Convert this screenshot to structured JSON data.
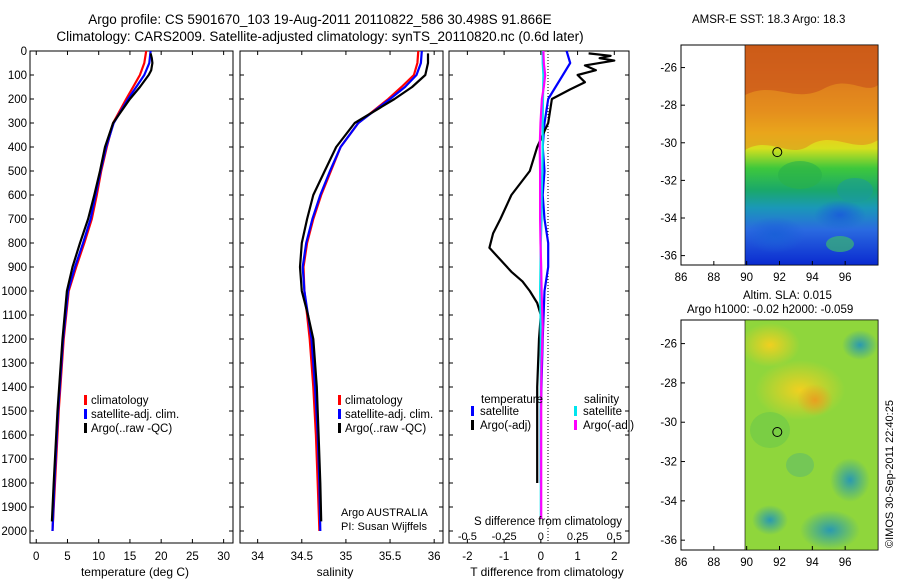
{
  "header": {
    "line1": "Argo profile: CS 5901670_103 19-Aug-2011 20110822_586 30.498S 91.866E",
    "line2": "Climatology: CARS2009. Satellite-adjusted climatology: synTS_20110820.nc (0.6d later)"
  },
  "colors": {
    "climatology": "#ff0000",
    "satellite": "#0000ff",
    "argo": "#000000",
    "salinity_satellite": "#00e5ee",
    "salinity_argo": "#ff00ff"
  },
  "depth_axis": {
    "ylim": [
      0,
      2050
    ],
    "ticks": [
      0,
      100,
      200,
      300,
      400,
      500,
      600,
      700,
      800,
      900,
      1000,
      1100,
      1200,
      1300,
      1400,
      1500,
      1600,
      1700,
      1800,
      1900,
      2000
    ]
  },
  "chart_data": [
    {
      "id": "temperature",
      "type": "line",
      "xlabel": "temperature (deg C)",
      "xlim": [
        -1,
        31.5
      ],
      "xticks": [
        0,
        5,
        10,
        15,
        20,
        25,
        30
      ],
      "legend": [
        "climatology",
        "satellite-adj. clim.",
        "Argo(..raw -QC)"
      ],
      "series": [
        {
          "name": "climatology",
          "color": "#ff0000",
          "depth": [
            0,
            50,
            100,
            150,
            200,
            300,
            400,
            500,
            600,
            700,
            800,
            900,
            1000,
            1200,
            1500,
            1800,
            2000
          ],
          "values": [
            17.6,
            17.3,
            16.6,
            15.5,
            14.4,
            12.3,
            11.3,
            10.4,
            9.7,
            8.9,
            7.7,
            6.4,
            5.2,
            4.4,
            3.6,
            3.0,
            2.6
          ]
        },
        {
          "name": "satellite-adj. clim.",
          "color": "#0000ff",
          "depth": [
            0,
            50,
            100,
            150,
            200,
            300,
            400,
            500,
            600,
            700,
            800,
            900,
            1000,
            1200,
            1500,
            1800,
            2000
          ],
          "values": [
            18.3,
            18.1,
            17.3,
            16.0,
            14.7,
            12.4,
            11.2,
            10.3,
            9.5,
            8.7,
            7.5,
            6.2,
            5.1,
            4.3,
            3.5,
            2.9,
            2.6
          ]
        },
        {
          "name": "Argo(..raw -QC)",
          "color": "#000000",
          "depth": [
            10,
            30,
            50,
            80,
            100,
            150,
            200,
            300,
            400,
            500,
            600,
            700,
            800,
            900,
            1000,
            1200,
            1500,
            1800,
            1960
          ],
          "values": [
            18.3,
            18.5,
            18.6,
            18.4,
            18.0,
            16.6,
            15.0,
            12.3,
            11.0,
            10.2,
            9.3,
            8.3,
            7.0,
            5.8,
            4.9,
            4.2,
            3.4,
            2.8,
            2.5
          ]
        }
      ]
    },
    {
      "id": "salinity",
      "type": "line",
      "xlabel": "salinity",
      "xlim": [
        33.8,
        36.1
      ],
      "xticks": [
        34,
        34.5,
        35,
        35.5,
        36
      ],
      "legend": [
        "climatology",
        "satellite-adj. clim.",
        "Argo(..raw -QC)"
      ],
      "series": [
        {
          "name": "climatology",
          "color": "#ff0000",
          "depth": [
            0,
            50,
            100,
            150,
            200,
            300,
            400,
            500,
            600,
            700,
            800,
            900,
            1000,
            1100,
            1200,
            1400,
            1600,
            1800,
            2000
          ],
          "values": [
            35.82,
            35.81,
            35.77,
            35.63,
            35.48,
            35.14,
            34.94,
            34.83,
            34.72,
            34.63,
            34.56,
            34.52,
            34.53,
            34.56,
            34.59,
            34.63,
            34.66,
            34.68,
            34.7
          ]
        },
        {
          "name": "satellite-adj. clim.",
          "color": "#0000ff",
          "depth": [
            0,
            50,
            100,
            150,
            200,
            300,
            400,
            500,
            600,
            700,
            800,
            900,
            1000,
            1100,
            1200,
            1400,
            1600,
            1800,
            2000
          ],
          "values": [
            35.86,
            35.85,
            35.8,
            35.67,
            35.5,
            35.14,
            34.94,
            34.82,
            34.71,
            34.62,
            34.55,
            34.51,
            34.53,
            34.57,
            34.61,
            34.65,
            34.68,
            34.7,
            34.71
          ]
        },
        {
          "name": "Argo(..raw -QC)",
          "color": "#000000",
          "depth": [
            10,
            50,
            100,
            150,
            200,
            300,
            400,
            500,
            600,
            700,
            800,
            900,
            1000,
            1100,
            1200,
            1400,
            1600,
            1800,
            1960
          ],
          "values": [
            35.93,
            35.93,
            35.9,
            35.75,
            35.55,
            35.1,
            34.89,
            34.76,
            34.63,
            34.56,
            34.5,
            34.48,
            34.5,
            34.57,
            34.63,
            34.67,
            34.69,
            34.71,
            34.72
          ]
        }
      ],
      "annotations": [
        "Argo AUSTRALIA",
        "PI: Susan Wijffels"
      ]
    },
    {
      "id": "difference",
      "type": "line",
      "xlabel_bottom": "T difference from climatology",
      "xlabel_top": "S difference from climatology",
      "xlim": [
        -2.5,
        2.4
      ],
      "xticks": [
        -2,
        -1,
        0,
        1,
        2
      ],
      "xticks_labels": [
        "-2",
        "-1",
        "0",
        "1",
        "2"
      ],
      "top_ticks_labels": [
        "-0.5",
        "-0.25",
        "0",
        "0.25",
        "0.5"
      ],
      "top_ticks_positions": [
        -2,
        -1,
        0,
        1,
        2
      ],
      "legend_temperature": {
        "heading": "temperature",
        "items": [
          "satellite",
          "Argo(-adj)"
        ]
      },
      "legend_salinity": {
        "heading": "salinity",
        "items": [
          "satellite",
          "Argo(-adj)"
        ]
      },
      "series": [
        {
          "name": "T satellite",
          "color": "#0000ff",
          "depth": [
            0,
            50,
            100,
            200,
            300,
            400,
            500,
            600,
            700,
            800,
            900,
            1000,
            1200,
            1500,
            1800
          ],
          "values": [
            0.7,
            0.8,
            0.6,
            0.2,
            0.1,
            0.05,
            0.1,
            0.05,
            0.1,
            0.2,
            0.2,
            0.1,
            0.05,
            0.0,
            0.0
          ]
        },
        {
          "name": "T Argo(-adj)",
          "color": "#000000",
          "depth": [
            10,
            20,
            30,
            40,
            60,
            80,
            100,
            130,
            160,
            200,
            300,
            400,
            500,
            600,
            700,
            760,
            820,
            870,
            920,
            960,
            1000,
            1050,
            1100,
            1200,
            1400,
            1600,
            1800
          ],
          "values": [
            1.3,
            1.9,
            1.6,
            2.0,
            1.2,
            1.5,
            1.0,
            1.2,
            0.8,
            0.3,
            0.2,
            -0.1,
            -0.3,
            -0.8,
            -1.1,
            -1.3,
            -1.4,
            -1.1,
            -0.8,
            -0.5,
            -0.3,
            -0.1,
            0.0,
            -0.05,
            -0.1,
            -0.1,
            -0.1
          ]
        },
        {
          "name": "S satellite",
          "color": "#00e5ee",
          "depth": [
            0,
            50,
            100,
            200,
            300,
            400,
            500,
            600,
            700,
            800,
            900,
            1000,
            1100,
            1200,
            1400,
            1600,
            1800,
            1950
          ],
          "values": [
            0.05,
            0.05,
            0.07,
            0.06,
            0.05,
            0.05,
            0.04,
            0.02,
            0.02,
            0.0,
            -0.01,
            -0.02,
            -0.01,
            0.0,
            0.0,
            0.0,
            0.0,
            0.0
          ]
        },
        {
          "name": "S Argo(-adj)",
          "color": "#ff00ff",
          "depth": [
            0,
            50,
            100,
            150,
            200,
            300,
            400,
            500,
            600,
            700,
            800,
            900,
            1000,
            1100,
            1150,
            1200,
            1300,
            1400,
            1500,
            1600,
            1800,
            1950
          ],
          "values": [
            0.07,
            0.08,
            0.12,
            0.08,
            0.03,
            -0.01,
            -0.03,
            -0.02,
            -0.02,
            -0.02,
            -0.01,
            0.01,
            0.02,
            0.04,
            0.05,
            0.04,
            0.02,
            0.01,
            0.01,
            0.01,
            0.01,
            0.01
          ]
        }
      ]
    },
    {
      "id": "sst_map",
      "type": "heatmap",
      "title": "AMSR-E SST: 18.3  Argo: 18.3",
      "xlim": [
        86,
        98
      ],
      "ylim": [
        -36.5,
        -24.8
      ],
      "xticks": [
        86,
        88,
        90,
        92,
        94,
        96
      ],
      "yticks": [
        -26,
        -28,
        -30,
        -32,
        -34,
        -36
      ],
      "data_lon_start": 90,
      "marker": {
        "lon": 91.866,
        "lat": -30.498
      }
    },
    {
      "id": "sla_map",
      "type": "heatmap",
      "title_line1": "Altim. SLA: 0.015",
      "title_line2": "Argo h1000: -0.02  h2000: -0.059",
      "xlim": [
        86,
        98
      ],
      "ylim": [
        -36.5,
        -24.8
      ],
      "xticks": [
        86,
        88,
        90,
        92,
        94,
        96
      ],
      "yticks": [
        -26,
        -28,
        -30,
        -32,
        -34,
        -36
      ],
      "data_lon_start": 90,
      "marker": {
        "lon": 91.866,
        "lat": -30.498
      }
    }
  ],
  "footer": {
    "stamp": "©IMOS 30-Sep-2011 22:40:25"
  }
}
